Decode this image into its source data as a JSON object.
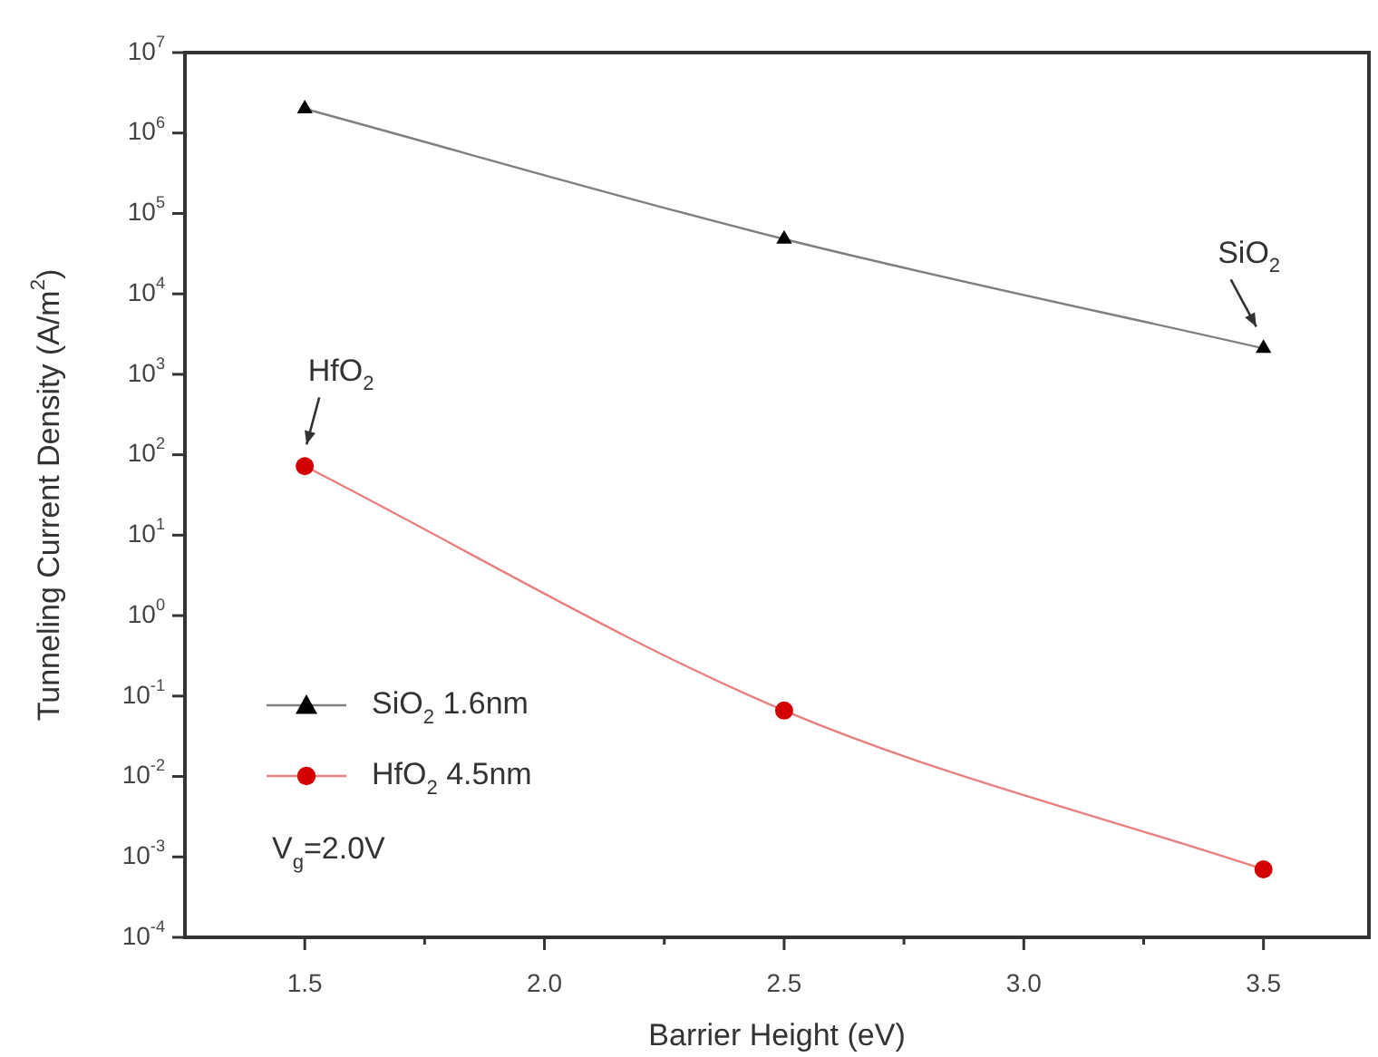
{
  "chart_data": {
    "type": "line",
    "xlabel": "Barrier Height (eV)",
    "ylabel": "Tunneling Current Density (A/m$^{2}$)",
    "x": [
      1.5,
      2.5,
      3.5
    ],
    "series": [
      {
        "name": "SiO$_{2}$ 1.6nm",
        "color": "#000000",
        "marker": "triangle",
        "values": [
          2000000,
          48000,
          2100
        ]
      },
      {
        "name": "HfO$_{2}$ 4.5nm",
        "color": "#d40000",
        "marker": "circle",
        "values": [
          72,
          0.066,
          0.0007
        ]
      }
    ],
    "log": "y",
    "xlim": [
      1.25,
      3.72
    ],
    "ylim": [
      0.0001,
      10000000
    ],
    "xticks": [
      {
        "value": 1.5,
        "label": "1.5"
      },
      {
        "value": 1.75,
        "label": null
      },
      {
        "value": 2.0,
        "label": "2.0"
      },
      {
        "value": 2.25,
        "label": null
      },
      {
        "value": 2.5,
        "label": "2.5"
      },
      {
        "value": 2.75,
        "label": null
      },
      {
        "value": 3.0,
        "label": "3.0"
      },
      {
        "value": 3.25,
        "label": null
      },
      {
        "value": 3.5,
        "label": "3.5"
      }
    ],
    "yticks": [
      {
        "value": 0.0001,
        "label": "10$^{-4}$"
      },
      {
        "value": 0.001,
        "label": "10$^{-3}$"
      },
      {
        "value": 0.01,
        "label": "10$^{-2}$"
      },
      {
        "value": 0.1,
        "label": "10$^{-1}$"
      },
      {
        "value": 1,
        "label": "10$^{0}$"
      },
      {
        "value": 10,
        "label": "10$^{1}$"
      },
      {
        "value": 100,
        "label": "10$^{2}$"
      },
      {
        "value": 1000,
        "label": "10$^{3}$"
      },
      {
        "value": 10000,
        "label": "10$^{4}$"
      },
      {
        "value": 100000,
        "label": "10$^{5}$"
      },
      {
        "value": 1000000,
        "label": "10$^{6}$"
      },
      {
        "value": 10000000,
        "label": "10$^{7}$"
      }
    ],
    "grid": false,
    "legend": "bottom left",
    "annotations": [
      {
        "text": "HfO$_{2}$",
        "x": 1.5,
        "y": 72
      },
      {
        "text": "SiO$_{2}$",
        "x": 3.5,
        "y": 2100
      },
      "V$_{g}$=2.0V"
    ]
  }
}
